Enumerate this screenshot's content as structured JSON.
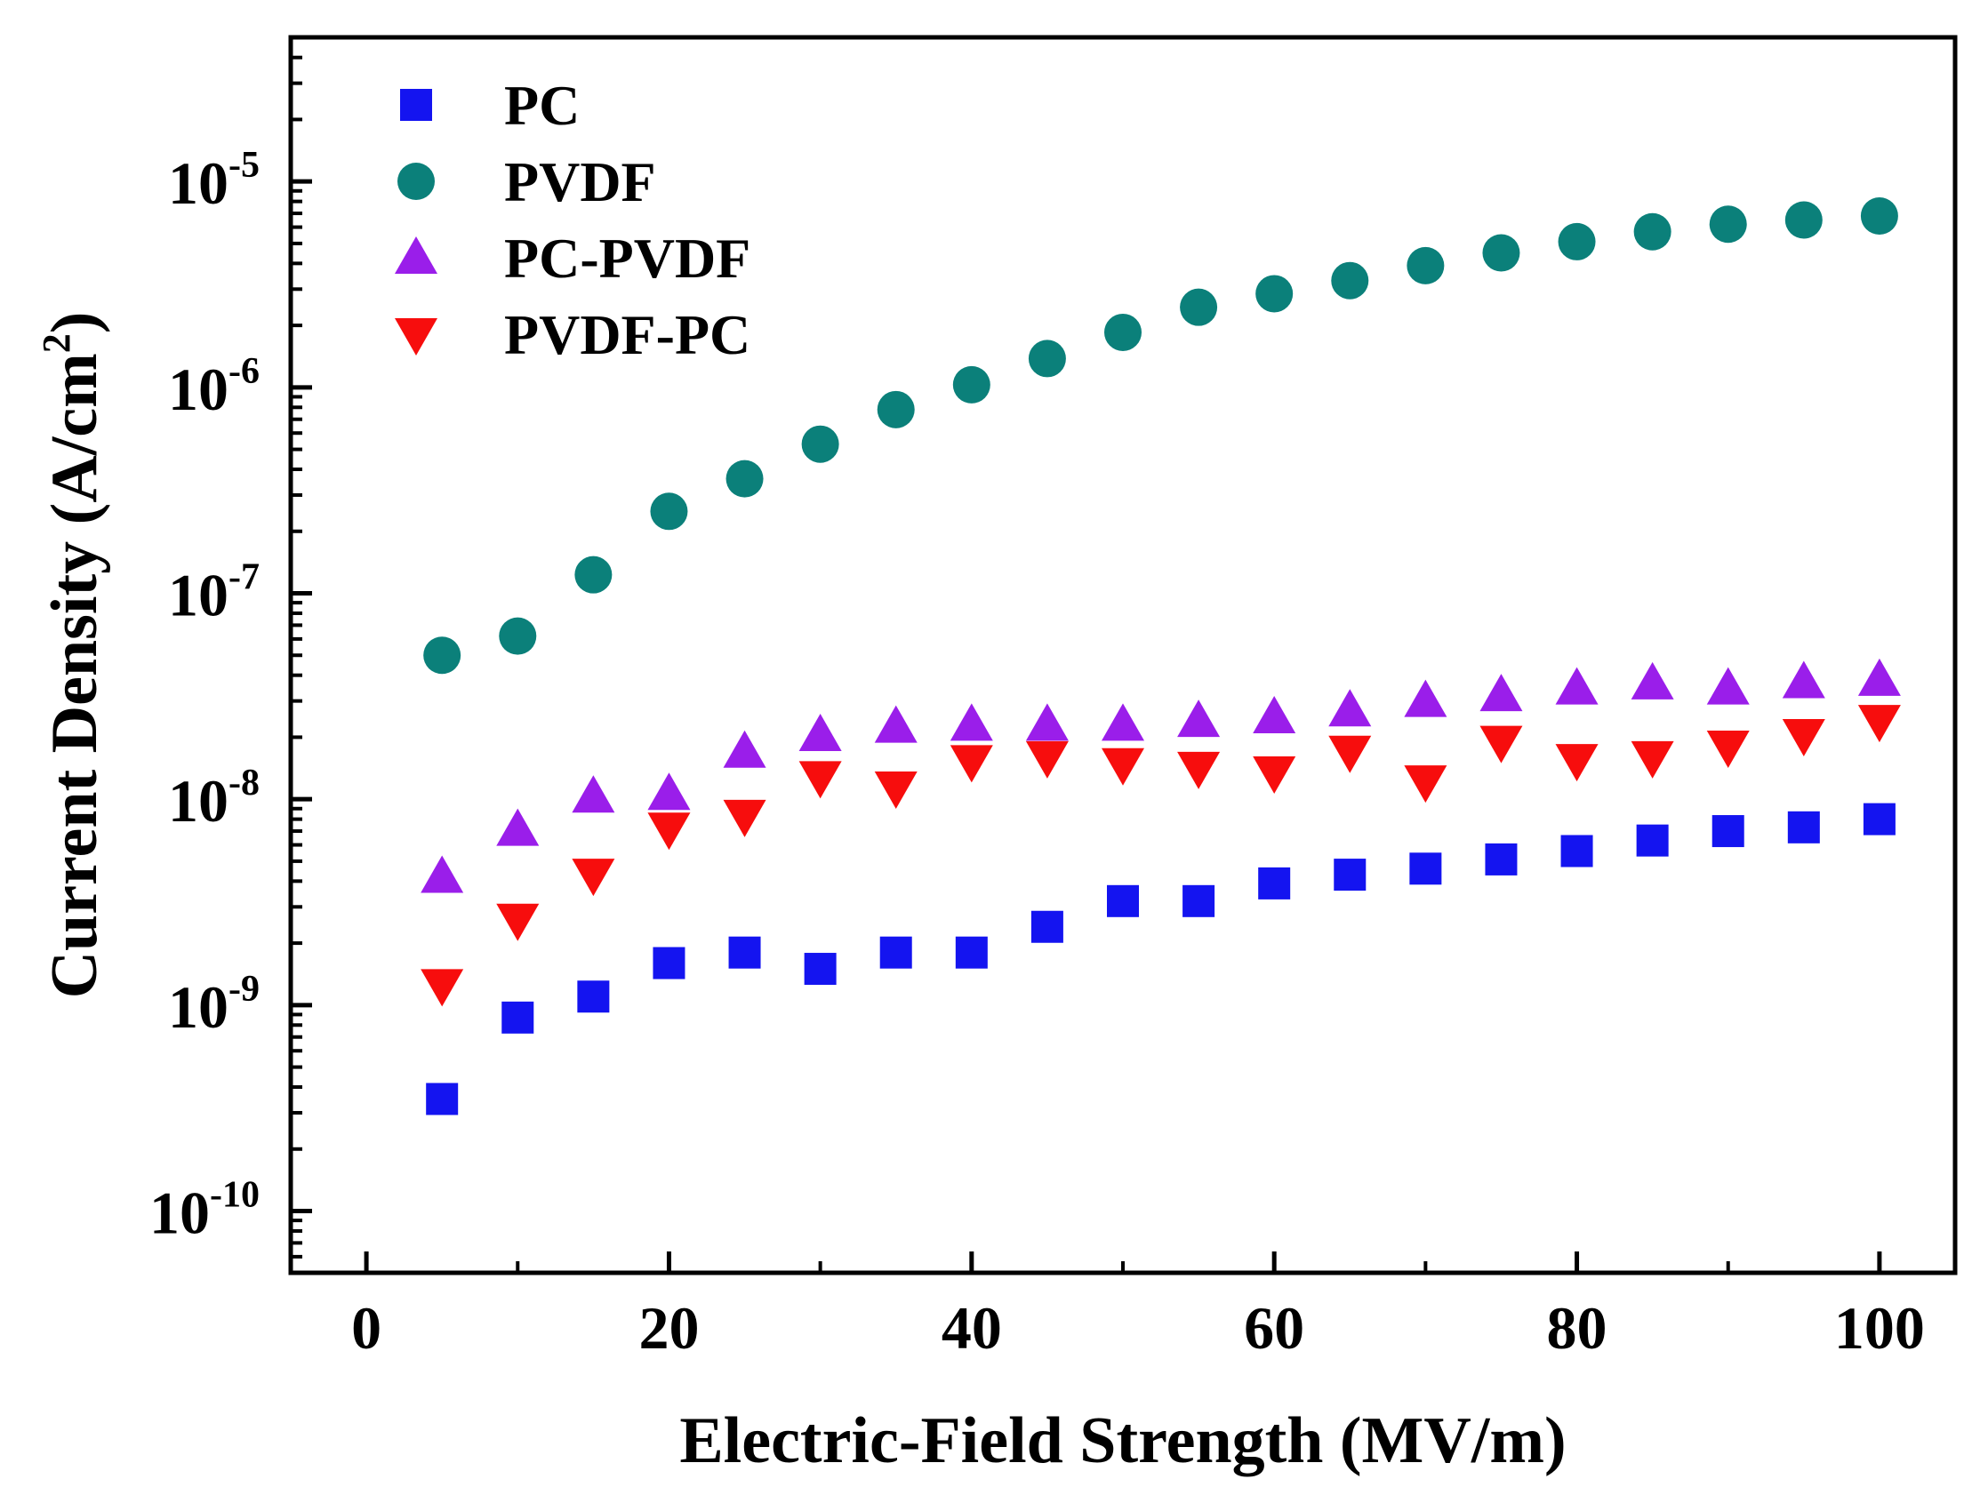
{
  "chart_data": {
    "type": "scatter",
    "title": "",
    "xlabel": "Electric-Field Strength (MV/m)",
    "ylabel": "Current Density (A/cm²)",
    "ylabel_main": "Current Density (A/cm",
    "ylabel_sup": "2",
    "ylabel_end": ")",
    "xlim": [
      -5,
      105
    ],
    "ylim_log10": [
      -10.3,
      -4.3
    ],
    "yscale": "log",
    "legend_position": "top-left",
    "x_ticks": [
      {
        "value": 0,
        "label": "0"
      },
      {
        "value": 20,
        "label": "20"
      },
      {
        "value": 40,
        "label": "40"
      },
      {
        "value": 60,
        "label": "60"
      },
      {
        "value": 80,
        "label": "80"
      },
      {
        "value": 100,
        "label": "100"
      }
    ],
    "y_ticks": [
      {
        "exp": -10,
        "base": "10",
        "sup": "-10"
      },
      {
        "exp": -9,
        "base": "10",
        "sup": "-9"
      },
      {
        "exp": -8,
        "base": "10",
        "sup": "-8"
      },
      {
        "exp": -7,
        "base": "10",
        "sup": "-7"
      },
      {
        "exp": -6,
        "base": "10",
        "sup": "-6"
      },
      {
        "exp": -5,
        "base": "10",
        "sup": "-5"
      }
    ],
    "x": [
      5,
      10,
      15,
      20,
      25,
      30,
      35,
      40,
      45,
      50,
      55,
      60,
      65,
      70,
      75,
      80,
      85,
      90,
      95,
      100
    ],
    "series": [
      {
        "name": "PC",
        "marker": "square",
        "color": "#1414f0",
        "values": [
          3.5e-10,
          8.7e-10,
          1.1e-09,
          1.6e-09,
          1.8e-09,
          1.5e-09,
          1.8e-09,
          1.8e-09,
          2.4e-09,
          3.2e-09,
          3.2e-09,
          3.9e-09,
          4.3e-09,
          4.6e-09,
          5.1e-09,
          5.6e-09,
          6.3e-09,
          7e-09,
          7.3e-09,
          8e-09
        ]
      },
      {
        "name": "PVDF",
        "marker": "circle",
        "color": "#0b807a",
        "values": [
          5e-08,
          6.2e-08,
          1.23e-07,
          2.5e-07,
          3.6e-07,
          5.3e-07,
          7.8e-07,
          1.03e-06,
          1.38e-06,
          1.85e-06,
          2.45e-06,
          2.85e-06,
          3.3e-06,
          3.9e-06,
          4.5e-06,
          5.1e-06,
          5.7e-06,
          6.2e-06,
          6.5e-06,
          6.8e-06
        ]
      },
      {
        "name": "PC-PVDF",
        "marker": "triangle-up",
        "color": "#9a1eea",
        "values": [
          4.2e-09,
          7.1e-09,
          1.03e-08,
          1.06e-08,
          1.7e-08,
          2.05e-08,
          2.25e-08,
          2.3e-08,
          2.3e-08,
          2.3e-08,
          2.4e-08,
          2.5e-08,
          2.7e-08,
          3e-08,
          3.2e-08,
          3.45e-08,
          3.65e-08,
          3.45e-08,
          3.7e-08,
          3.8e-08
        ]
      },
      {
        "name": "PVDF-PC",
        "marker": "triangle-down",
        "color": "#f70d0d",
        "values": [
          1.25e-09,
          2.6e-09,
          4.3e-09,
          7.2e-09,
          8.3e-09,
          1.28e-08,
          1.14e-08,
          1.53e-08,
          1.6e-08,
          1.48e-08,
          1.42e-08,
          1.35e-08,
          1.7e-08,
          1.22e-08,
          1.9e-08,
          1.55e-08,
          1.6e-08,
          1.8e-08,
          2.05e-08,
          2.4e-08
        ]
      }
    ]
  }
}
